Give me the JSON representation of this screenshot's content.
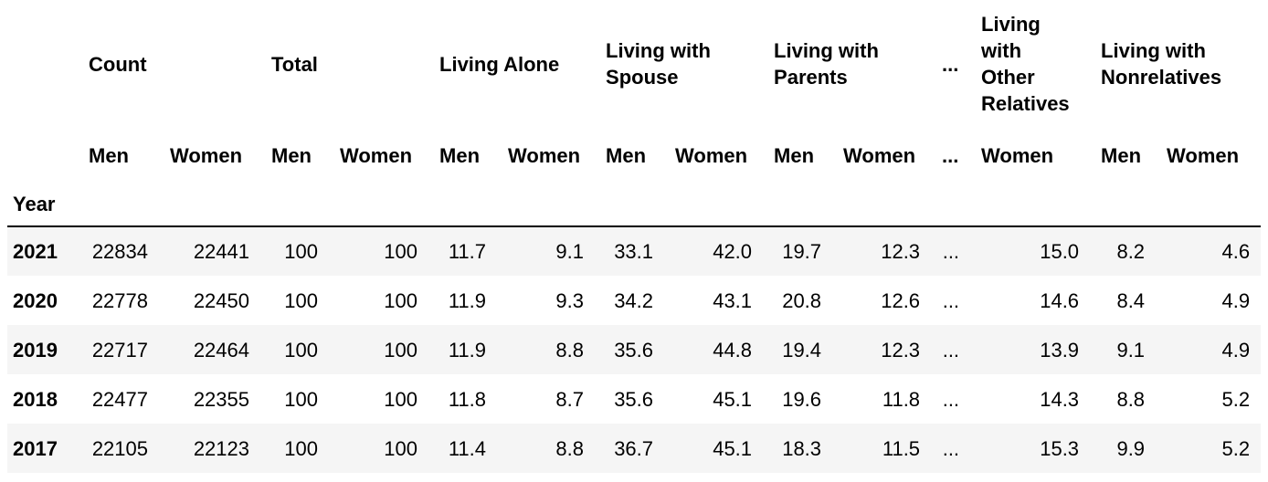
{
  "table": {
    "index_name": "Year",
    "col_groups": [
      {
        "label": "Count",
        "span": 2
      },
      {
        "label": "Total",
        "span": 2
      },
      {
        "label": "Living Alone",
        "span": 2
      },
      {
        "label": "Living with Spouse",
        "span": 2
      },
      {
        "label": "Living with Parents",
        "span": 2
      },
      {
        "label": "...",
        "span": 1
      },
      {
        "label": "Living with Other Relatives",
        "span": 1
      },
      {
        "label": "Living with Nonrelatives",
        "span": 2
      }
    ],
    "sub_headers": [
      "Men",
      "Women",
      "Men",
      "Women",
      "Men",
      "Women",
      "Men",
      "Women",
      "Men",
      "Women",
      "...",
      "Women",
      "Men",
      "Women"
    ],
    "rows": [
      {
        "year": "2021",
        "values": [
          "22834",
          "22441",
          "100",
          "100",
          "11.7",
          "9.1",
          "33.1",
          "42.0",
          "19.7",
          "12.3",
          "...",
          "15.0",
          "8.2",
          "4.6"
        ]
      },
      {
        "year": "2020",
        "values": [
          "22778",
          "22450",
          "100",
          "100",
          "11.9",
          "9.3",
          "34.2",
          "43.1",
          "20.8",
          "12.6",
          "...",
          "14.6",
          "8.4",
          "4.9"
        ]
      },
      {
        "year": "2019",
        "values": [
          "22717",
          "22464",
          "100",
          "100",
          "11.9",
          "8.8",
          "35.6",
          "44.8",
          "19.4",
          "12.3",
          "...",
          "13.9",
          "9.1",
          "4.9"
        ]
      },
      {
        "year": "2018",
        "values": [
          "22477",
          "22355",
          "100",
          "100",
          "11.8",
          "8.7",
          "35.6",
          "45.1",
          "19.6",
          "11.8",
          "...",
          "14.3",
          "8.8",
          "5.2"
        ]
      },
      {
        "year": "2017",
        "values": [
          "22105",
          "22123",
          "100",
          "100",
          "11.4",
          "8.8",
          "36.7",
          "45.1",
          "18.3",
          "11.5",
          "...",
          "15.3",
          "9.9",
          "5.2"
        ]
      }
    ]
  },
  "colors": {
    "row_stripe": "#f5f5f5",
    "header_rule": "#000000",
    "text": "#000000",
    "background": "#ffffff"
  }
}
